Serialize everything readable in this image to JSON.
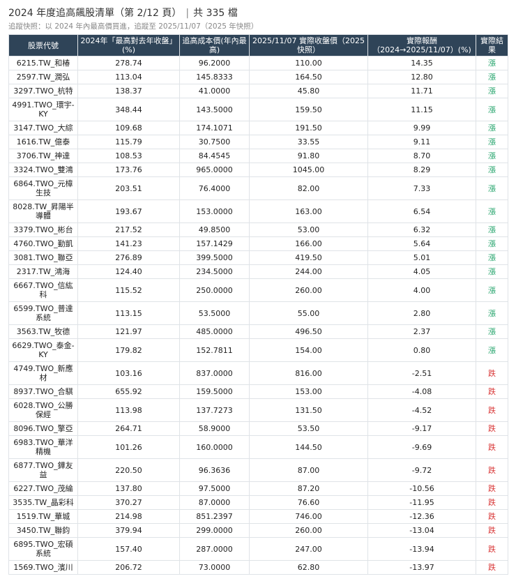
{
  "header": {
    "title": "2024 年度追高飆股清單（第 2/12 頁）",
    "separator": "|",
    "total": "共 335 檔",
    "subtitle": "追蹤快照：以 2024 年內最高價買進，追蹤至 2025/11/07（2025 年快照）"
  },
  "table": {
    "columns": [
      "股票代號",
      "2024年「最高對去年收盤」(%)",
      "追高成本價(年內最高)",
      "2025/11/07 實際收盤價（2025快照）",
      "實際報酬（2024→2025/11/07）(%)",
      "實際結果"
    ],
    "rows": [
      {
        "code": "6215.TW_和椿",
        "gain": "278.74",
        "cost": "96.2000",
        "close": "110.00",
        "ret": "14.35",
        "result": "漲",
        "dir": "up"
      },
      {
        "code": "2597.TW_潤弘",
        "gain": "113.04",
        "cost": "145.8333",
        "close": "164.50",
        "ret": "12.80",
        "result": "漲",
        "dir": "up"
      },
      {
        "code": "3297.TWO_杭特",
        "gain": "138.37",
        "cost": "41.0000",
        "close": "45.80",
        "ret": "11.71",
        "result": "漲",
        "dir": "up"
      },
      {
        "code": "4991.TWO_環宇-KY",
        "gain": "348.44",
        "cost": "143.5000",
        "close": "159.50",
        "ret": "11.15",
        "result": "漲",
        "dir": "up"
      },
      {
        "code": "3147.TWO_大綜",
        "gain": "109.68",
        "cost": "174.1071",
        "close": "191.50",
        "ret": "9.99",
        "result": "漲",
        "dir": "up"
      },
      {
        "code": "1616.TW_億泰",
        "gain": "115.79",
        "cost": "30.7500",
        "close": "33.55",
        "ret": "9.11",
        "result": "漲",
        "dir": "up"
      },
      {
        "code": "3706.TW_神達",
        "gain": "108.53",
        "cost": "84.4545",
        "close": "91.80",
        "ret": "8.70",
        "result": "漲",
        "dir": "up"
      },
      {
        "code": "3324.TWO_雙鴻",
        "gain": "173.76",
        "cost": "965.0000",
        "close": "1045.00",
        "ret": "8.29",
        "result": "漲",
        "dir": "up"
      },
      {
        "code": "6864.TWO_元樟生技",
        "gain": "203.51",
        "cost": "76.4000",
        "close": "82.00",
        "ret": "7.33",
        "result": "漲",
        "dir": "up"
      },
      {
        "code": "8028.TW_昇陽半導體",
        "gain": "193.67",
        "cost": "153.0000",
        "close": "163.00",
        "ret": "6.54",
        "result": "漲",
        "dir": "up"
      },
      {
        "code": "3379.TWO_彬台",
        "gain": "217.52",
        "cost": "49.8500",
        "close": "53.00",
        "ret": "6.32",
        "result": "漲",
        "dir": "up"
      },
      {
        "code": "4760.TWO_勤凱",
        "gain": "141.23",
        "cost": "157.1429",
        "close": "166.00",
        "ret": "5.64",
        "result": "漲",
        "dir": "up"
      },
      {
        "code": "3081.TWO_聯亞",
        "gain": "276.89",
        "cost": "399.5000",
        "close": "419.50",
        "ret": "5.01",
        "result": "漲",
        "dir": "up"
      },
      {
        "code": "2317.TW_鴻海",
        "gain": "124.40",
        "cost": "234.5000",
        "close": "244.00",
        "ret": "4.05",
        "result": "漲",
        "dir": "up"
      },
      {
        "code": "6667.TWO_信紘科",
        "gain": "115.52",
        "cost": "250.0000",
        "close": "260.00",
        "ret": "4.00",
        "result": "漲",
        "dir": "up"
      },
      {
        "code": "6599.TWO_普達系統",
        "gain": "113.15",
        "cost": "53.5000",
        "close": "55.00",
        "ret": "2.80",
        "result": "漲",
        "dir": "up"
      },
      {
        "code": "3563.TW_牧德",
        "gain": "121.97",
        "cost": "485.0000",
        "close": "496.50",
        "ret": "2.37",
        "result": "漲",
        "dir": "up"
      },
      {
        "code": "6629.TWO_泰金-KY",
        "gain": "179.82",
        "cost": "152.7811",
        "close": "154.00",
        "ret": "0.80",
        "result": "漲",
        "dir": "up"
      },
      {
        "code": "4749.TWO_新應材",
        "gain": "103.16",
        "cost": "837.0000",
        "close": "816.00",
        "ret": "-2.51",
        "result": "跌",
        "dir": "down"
      },
      {
        "code": "8937.TWO_合騏",
        "gain": "655.92",
        "cost": "159.5000",
        "close": "153.00",
        "ret": "-4.08",
        "result": "跌",
        "dir": "down"
      },
      {
        "code": "6028.TWO_公勝保經",
        "gain": "113.98",
        "cost": "137.7273",
        "close": "131.50",
        "ret": "-4.52",
        "result": "跌",
        "dir": "down"
      },
      {
        "code": "8096.TWO_擎亞",
        "gain": "264.71",
        "cost": "58.9000",
        "close": "53.50",
        "ret": "-9.17",
        "result": "跌",
        "dir": "down"
      },
      {
        "code": "6983.TWO_華洋精機",
        "gain": "101.26",
        "cost": "160.0000",
        "close": "144.50",
        "ret": "-9.69",
        "result": "跌",
        "dir": "down"
      },
      {
        "code": "6877.TWO_鏵友益",
        "gain": "220.50",
        "cost": "96.3636",
        "close": "87.00",
        "ret": "-9.72",
        "result": "跌",
        "dir": "down"
      },
      {
        "code": "6227.TWO_茂綸",
        "gain": "137.80",
        "cost": "97.5000",
        "close": "87.20",
        "ret": "-10.56",
        "result": "跌",
        "dir": "down"
      },
      {
        "code": "3535.TW_晶彩科",
        "gain": "370.27",
        "cost": "87.0000",
        "close": "76.60",
        "ret": "-11.95",
        "result": "跌",
        "dir": "down"
      },
      {
        "code": "1519.TW_華城",
        "gain": "214.98",
        "cost": "851.2397",
        "close": "746.00",
        "ret": "-12.36",
        "result": "跌",
        "dir": "down"
      },
      {
        "code": "3450.TW_聯鈞",
        "gain": "379.94",
        "cost": "299.0000",
        "close": "260.00",
        "ret": "-13.04",
        "result": "跌",
        "dir": "down"
      },
      {
        "code": "6895.TWO_宏碩系統",
        "gain": "157.40",
        "cost": "287.0000",
        "close": "247.00",
        "ret": "-13.94",
        "result": "跌",
        "dir": "down"
      },
      {
        "code": "1569.TWO_濱川",
        "gain": "206.72",
        "cost": "73.0000",
        "close": "62.80",
        "ret": "-13.97",
        "result": "跌",
        "dir": "down"
      }
    ]
  },
  "colors": {
    "header_bg": "#2f4458",
    "up": "#22a36a",
    "down": "#d93838",
    "border": "#dfe3e7"
  }
}
